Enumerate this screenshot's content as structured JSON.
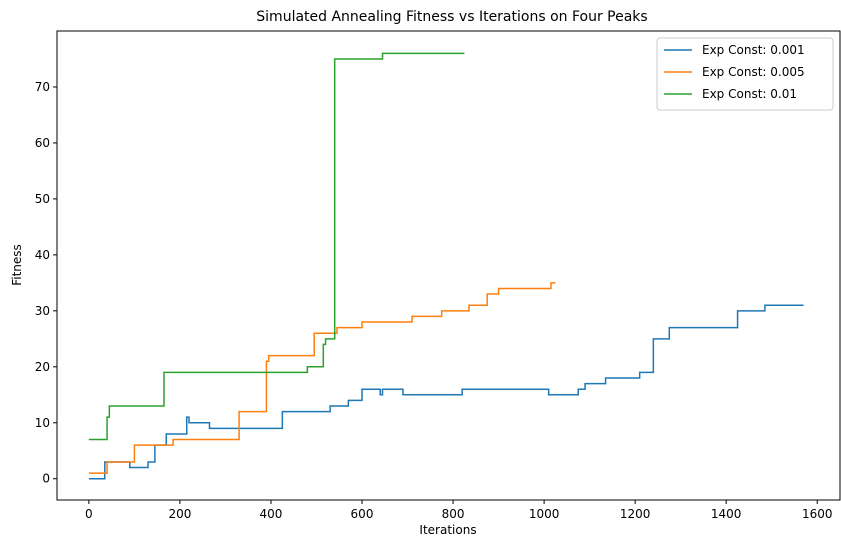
{
  "chart_data": {
    "type": "line",
    "title": "Simulated Annealing Fitness vs Iterations on Four Peaks",
    "xlabel": "Iterations",
    "ylabel": "Fitness",
    "xlim": [
      -70,
      1650
    ],
    "ylim": [
      -3.8,
      80
    ],
    "x_ticks": [
      0,
      200,
      400,
      600,
      800,
      1000,
      1200,
      1400,
      1600
    ],
    "y_ticks": [
      0,
      10,
      20,
      30,
      40,
      50,
      60,
      70
    ],
    "grid": false,
    "legend_position": "top-right",
    "step": true,
    "series": [
      {
        "name": "Exp Const: 0.001",
        "color": "#1f77b4",
        "points": [
          [
            0,
            0
          ],
          [
            35,
            0
          ],
          [
            35,
            3
          ],
          [
            90,
            3
          ],
          [
            90,
            2
          ],
          [
            130,
            2
          ],
          [
            130,
            3
          ],
          [
            145,
            3
          ],
          [
            145,
            6
          ],
          [
            170,
            6
          ],
          [
            170,
            8
          ],
          [
            215,
            8
          ],
          [
            215,
            11
          ],
          [
            220,
            11
          ],
          [
            220,
            10
          ],
          [
            265,
            10
          ],
          [
            265,
            9
          ],
          [
            425,
            9
          ],
          [
            425,
            12
          ],
          [
            530,
            12
          ],
          [
            530,
            13
          ],
          [
            570,
            13
          ],
          [
            570,
            14
          ],
          [
            600,
            14
          ],
          [
            600,
            16
          ],
          [
            640,
            16
          ],
          [
            640,
            15
          ],
          [
            645,
            15
          ],
          [
            645,
            16
          ],
          [
            690,
            16
          ],
          [
            690,
            15
          ],
          [
            820,
            15
          ],
          [
            820,
            16
          ],
          [
            1010,
            16
          ],
          [
            1010,
            15
          ],
          [
            1075,
            15
          ],
          [
            1075,
            16
          ],
          [
            1090,
            16
          ],
          [
            1090,
            17
          ],
          [
            1135,
            17
          ],
          [
            1135,
            18
          ],
          [
            1210,
            18
          ],
          [
            1210,
            19
          ],
          [
            1240,
            19
          ],
          [
            1240,
            25
          ],
          [
            1275,
            25
          ],
          [
            1275,
            27
          ],
          [
            1425,
            27
          ],
          [
            1425,
            30
          ],
          [
            1485,
            30
          ],
          [
            1485,
            31
          ],
          [
            1570,
            31
          ]
        ]
      },
      {
        "name": "Exp Const: 0.005",
        "color": "#ff7f0e",
        "points": [
          [
            0,
            1
          ],
          [
            40,
            1
          ],
          [
            40,
            3
          ],
          [
            100,
            3
          ],
          [
            100,
            6
          ],
          [
            185,
            6
          ],
          [
            185,
            7
          ],
          [
            330,
            7
          ],
          [
            330,
            12
          ],
          [
            390,
            12
          ],
          [
            390,
            21
          ],
          [
            395,
            21
          ],
          [
            395,
            22
          ],
          [
            495,
            22
          ],
          [
            495,
            26
          ],
          [
            545,
            26
          ],
          [
            545,
            27
          ],
          [
            600,
            27
          ],
          [
            600,
            28
          ],
          [
            710,
            28
          ],
          [
            710,
            29
          ],
          [
            775,
            29
          ],
          [
            775,
            30
          ],
          [
            835,
            30
          ],
          [
            835,
            31
          ],
          [
            875,
            31
          ],
          [
            875,
            33
          ],
          [
            900,
            33
          ],
          [
            900,
            34
          ],
          [
            1015,
            34
          ],
          [
            1015,
            35
          ],
          [
            1025,
            35
          ]
        ]
      },
      {
        "name": "Exp Const: 0.01",
        "color": "#2ca02c",
        "points": [
          [
            0,
            7
          ],
          [
            40,
            7
          ],
          [
            40,
            11
          ],
          [
            45,
            11
          ],
          [
            45,
            13
          ],
          [
            165,
            13
          ],
          [
            165,
            19
          ],
          [
            480,
            19
          ],
          [
            480,
            20
          ],
          [
            515,
            20
          ],
          [
            515,
            24
          ],
          [
            520,
            24
          ],
          [
            520,
            25
          ],
          [
            540,
            25
          ],
          [
            540,
            75
          ],
          [
            645,
            75
          ],
          [
            645,
            76
          ],
          [
            825,
            76
          ]
        ]
      }
    ]
  }
}
